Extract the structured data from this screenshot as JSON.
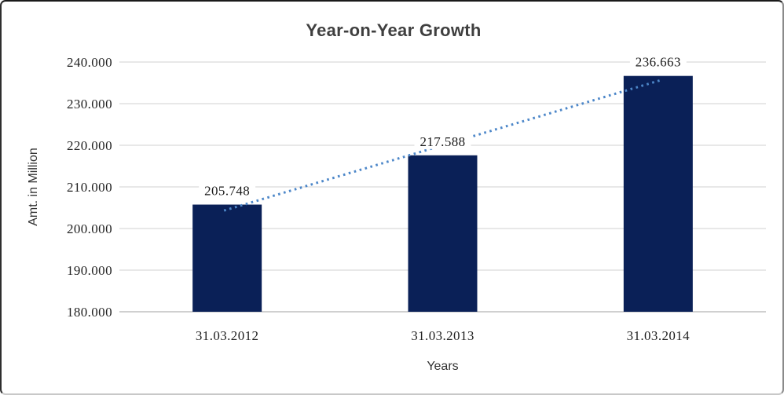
{
  "chart": {
    "title": "Year-on-Year Growth",
    "y_axis_title": "Amt. in Million",
    "x_axis_title": "Years"
  },
  "chart_data": {
    "type": "bar",
    "title": "Year-on-Year Growth",
    "xlabel": "Years",
    "ylabel": "Amt. in Million",
    "categories": [
      "31.03.2012",
      "31.03.2013",
      "31.03.2014"
    ],
    "series": [
      {
        "name": "Amt. in Million",
        "values": [
          205.748,
          217.588,
          236.663
        ],
        "data_labels": [
          "205.748",
          "217.588",
          "236.663"
        ]
      }
    ],
    "trendline": {
      "type": "linear",
      "style": "dotted"
    },
    "ylim": [
      180,
      240
    ],
    "ytick_step": 10,
    "ytick_labels": [
      "180.000",
      "190.000",
      "200.000",
      "210.000",
      "220.000",
      "230.000",
      "240.000"
    ],
    "grid": true,
    "legend": "none",
    "colors": {
      "bar": "#0a2057",
      "trendline": "#4d87c9",
      "gridline": "#d9d9d9",
      "axis_line": "#b3b3b3",
      "title_text": "#3f3f3f",
      "tick_text": "#1f1f1f",
      "axis_title_text": "#333333",
      "data_label_text": "#1a1a1a",
      "background": "#ffffff"
    }
  }
}
